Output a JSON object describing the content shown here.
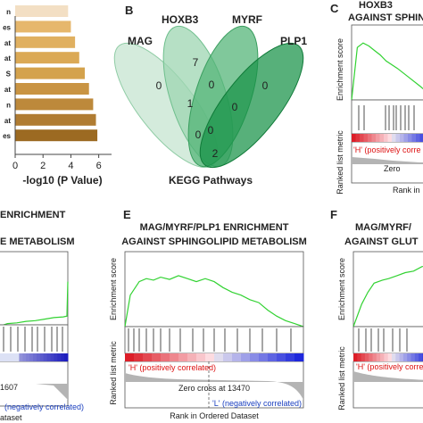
{
  "panels": {
    "a": {
      "xlabel": "-log10 (P Value)",
      "xticks": [
        "0",
        "2",
        "4",
        "6"
      ],
      "labels_visible": [
        "n",
        "es",
        "at",
        "at",
        "S",
        "at",
        "n",
        "at",
        "es"
      ]
    },
    "b": {
      "letter": "B",
      "sets": [
        "MAG",
        "HOXB3",
        "MYRF",
        "PLP1"
      ],
      "counts": [
        "0",
        "7",
        "1",
        "0",
        "0",
        "0",
        "0",
        "2",
        "0"
      ],
      "caption": "KEGG Pathways"
    },
    "c": {
      "letter": "C",
      "title_lines": [
        "HOXB3",
        "AGAINST SPHIN"
      ],
      "ylabel_top": "Enrichment score",
      "ylabel_bottom": "Ranked list metric",
      "pos_label": "'H' (positively corre",
      "zero_label": "Zero",
      "xlabel": "Rank in"
    },
    "d": {
      "title_lines": [
        "ENRICHMENT",
        "E METABOLISM"
      ],
      "zero_fragment": "1607",
      "neg_label": "(negatively correlated)",
      "xlabel_fragment": "ataset"
    },
    "e": {
      "letter": "E",
      "title_lines": [
        "MAG/MYRF/PLP1 ENRICHMENT",
        "AGAINST SPHINGOLIPID METABOLISM"
      ],
      "ylabel_top": "Enrichment score",
      "ylabel_bottom": "Ranked list metric",
      "pos_label": "'H' (positively correlated)",
      "zero_label": "Zero cross at 13470",
      "neg_label": "'L' (negatively correlated)",
      "xlabel": "Rank in Ordered Dataset"
    },
    "f": {
      "letter": "F",
      "title_lines": [
        "MAG/MYRF/",
        "AGAINST GLUT"
      ],
      "ylabel_top": "Enrichment score",
      "ylabel_bottom": "Ranked list metric",
      "pos_label": "'H' (positively correl"
    }
  },
  "chart_data": [
    {
      "type": "bar",
      "orientation": "horizontal",
      "categories": [
        "n",
        "es",
        "at",
        "at",
        "S",
        "at",
        "n",
        "at",
        "es"
      ],
      "values": [
        3.8,
        4.0,
        4.3,
        4.6,
        5.0,
        5.3,
        5.6,
        5.8,
        5.9
      ],
      "colors": [
        "#f3dfc4",
        "#e6b76c",
        "#e0b060",
        "#dba955",
        "#d4a24c",
        "#c99443",
        "#bd893b",
        "#b07c32",
        "#9c6a22"
      ],
      "xlabel": "-log10 (P Value)",
      "xlim": [
        0,
        6.6
      ]
    },
    {
      "type": "line",
      "panel": "C",
      "ylabel": "Enrichment score",
      "x": [
        0,
        5,
        10,
        15,
        20,
        25,
        30,
        40,
        50,
        60,
        70
      ],
      "values": [
        0.0,
        0.7,
        0.76,
        0.72,
        0.66,
        0.6,
        0.52,
        0.42,
        0.3,
        0.18,
        0.05
      ]
    },
    {
      "type": "line",
      "panel": "E",
      "ylabel": "Enrichment score",
      "x": [
        0,
        3,
        8,
        12,
        16,
        20,
        25,
        30,
        35,
        40,
        45,
        50,
        55,
        60,
        65,
        70,
        75,
        80,
        85,
        90,
        95,
        100
      ],
      "values": [
        0.0,
        0.42,
        0.6,
        0.64,
        0.62,
        0.66,
        0.63,
        0.68,
        0.64,
        0.6,
        0.64,
        0.6,
        0.52,
        0.46,
        0.42,
        0.36,
        0.32,
        0.22,
        0.14,
        0.08,
        0.04,
        0.0
      ]
    },
    {
      "type": "line",
      "panel": "F",
      "ylabel": "Enrichment score",
      "x": [
        0,
        8,
        14,
        20,
        28,
        34,
        42,
        50,
        58,
        66,
        74
      ],
      "values": [
        0.0,
        0.3,
        0.46,
        0.58,
        0.62,
        0.64,
        0.68,
        0.72,
        0.74,
        0.8,
        0.82
      ]
    },
    {
      "type": "line",
      "panel": "D",
      "ylabel": "Enrichment score",
      "x": [
        0,
        10,
        20,
        30,
        40,
        50,
        60,
        70,
        74,
        75
      ],
      "values": [
        0.0,
        0.04,
        0.05,
        0.07,
        0.08,
        0.1,
        0.12,
        0.13,
        0.14,
        0.6
      ]
    }
  ]
}
